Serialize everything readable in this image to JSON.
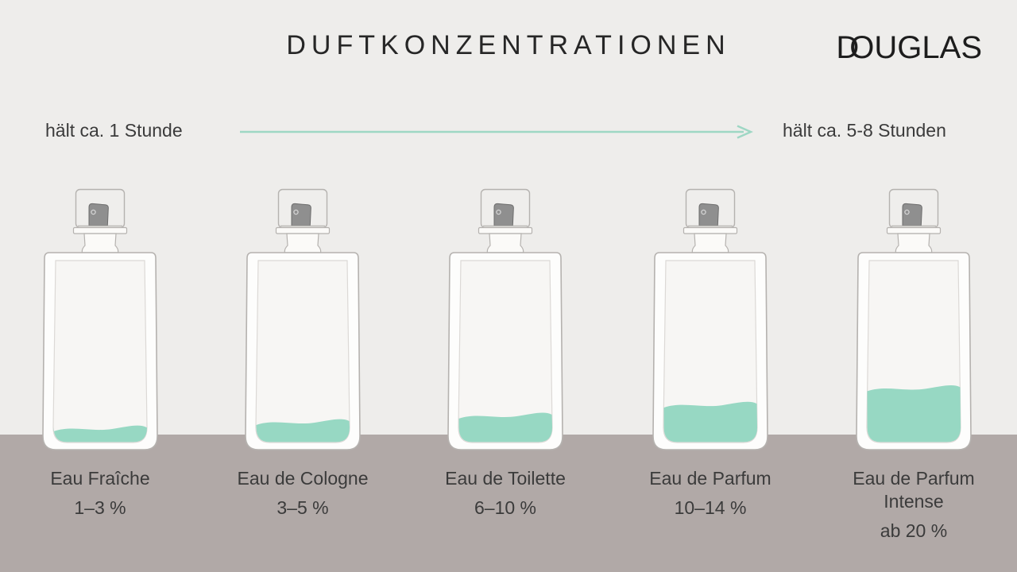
{
  "header": {
    "title": "DUFTKONZENTRATIONEN",
    "brand": "DOUGLAS",
    "brand_part1": "D",
    "brand_part2": "O",
    "brand_part3": "UGLAS"
  },
  "duration_scale": {
    "left_label": "hält ca. 1 Stunde",
    "right_label": "hält ca. 5-8 Stunden"
  },
  "bottles": [
    {
      "name": "Eau Fraîche",
      "concentration": "1–3 %",
      "fill_level_percent": 10
    },
    {
      "name": "Eau de Cologne",
      "concentration": "3–5 %",
      "fill_level_percent": 13.5
    },
    {
      "name": "Eau de Toilette",
      "concentration": "6–10 %",
      "fill_level_percent": 17
    },
    {
      "name": "Eau de Parfum",
      "concentration": "10–14 %",
      "fill_level_percent": 23
    },
    {
      "name": "Eau de Parfum Intense",
      "concentration": "ab 20 %",
      "fill_level_percent": 32
    }
  ],
  "colors": {
    "background": "#eeedeb",
    "floor": "#b1a9a7",
    "liquid": "#97d8c3",
    "arrow": "#9ed7c4",
    "bottle_outline": "#b5b2af",
    "inner_outline": "#dcd9d6",
    "sprayer": "#8f8f8f",
    "text": "#3b3b3b"
  }
}
